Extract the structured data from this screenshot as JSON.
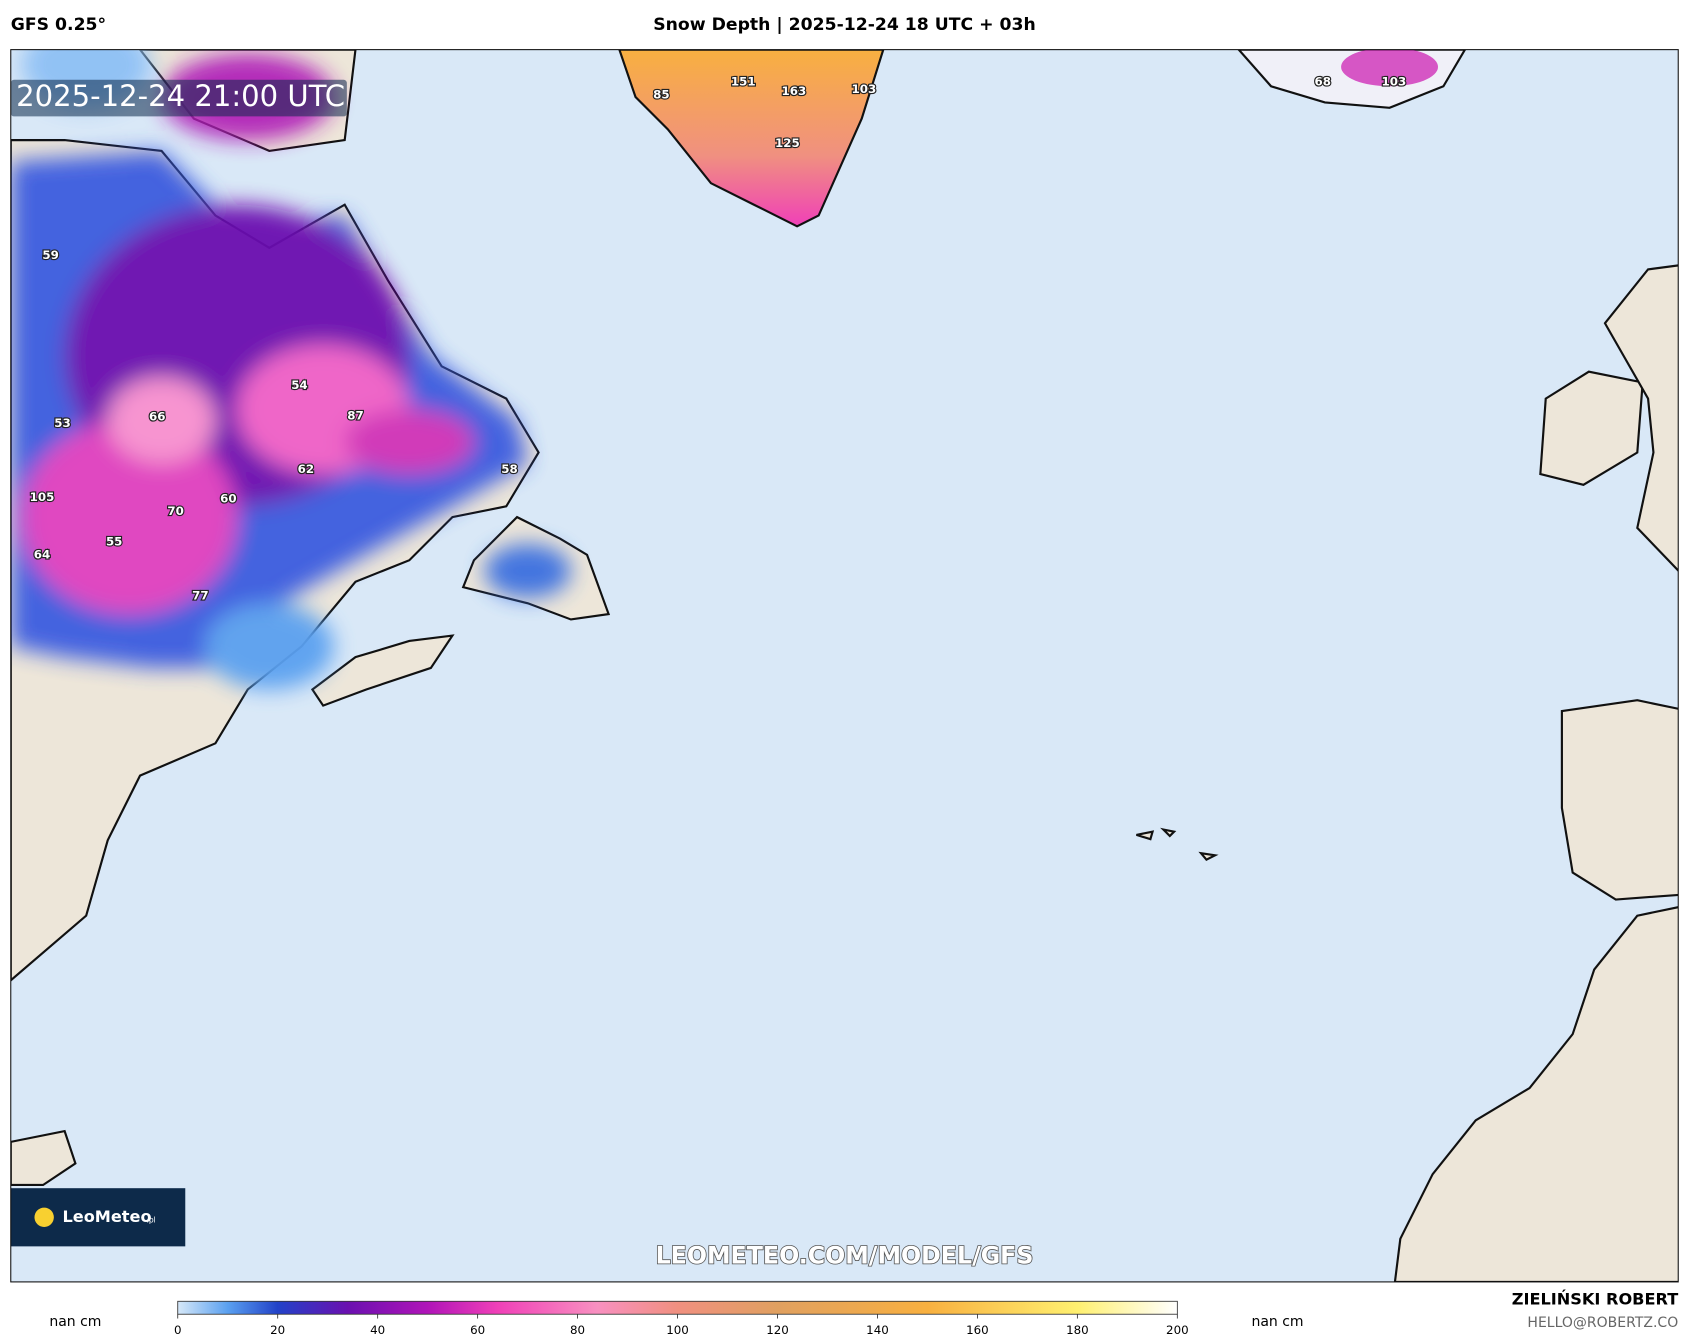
{
  "header": {
    "model": "GFS 0.25°",
    "title": "Snow Depth | 2025-12-24 18 UTC + 03h"
  },
  "map": {
    "timestamp": "2025-12-24 21:00 UTC",
    "watermark": "LEOMETEO.COM/MODEL/GFS",
    "logo": "LeoMeteo",
    "logo_suffix": ".pl",
    "point_labels": [
      59,
      53,
      66,
      54,
      87,
      62,
      58,
      105,
      70,
      60,
      55,
      64,
      77,
      85,
      151,
      163,
      103,
      125,
      68,
      103
    ]
  },
  "colorbar": {
    "ticks": [
      0,
      20,
      40,
      60,
      80,
      100,
      120,
      140,
      160,
      180,
      200
    ],
    "left_label": "nan cm",
    "right_label": "nan cm"
  },
  "credits": {
    "author": "ZIELIŃSKI ROBERT",
    "contact": "HELLO@ROBERTZ.CO"
  }
}
